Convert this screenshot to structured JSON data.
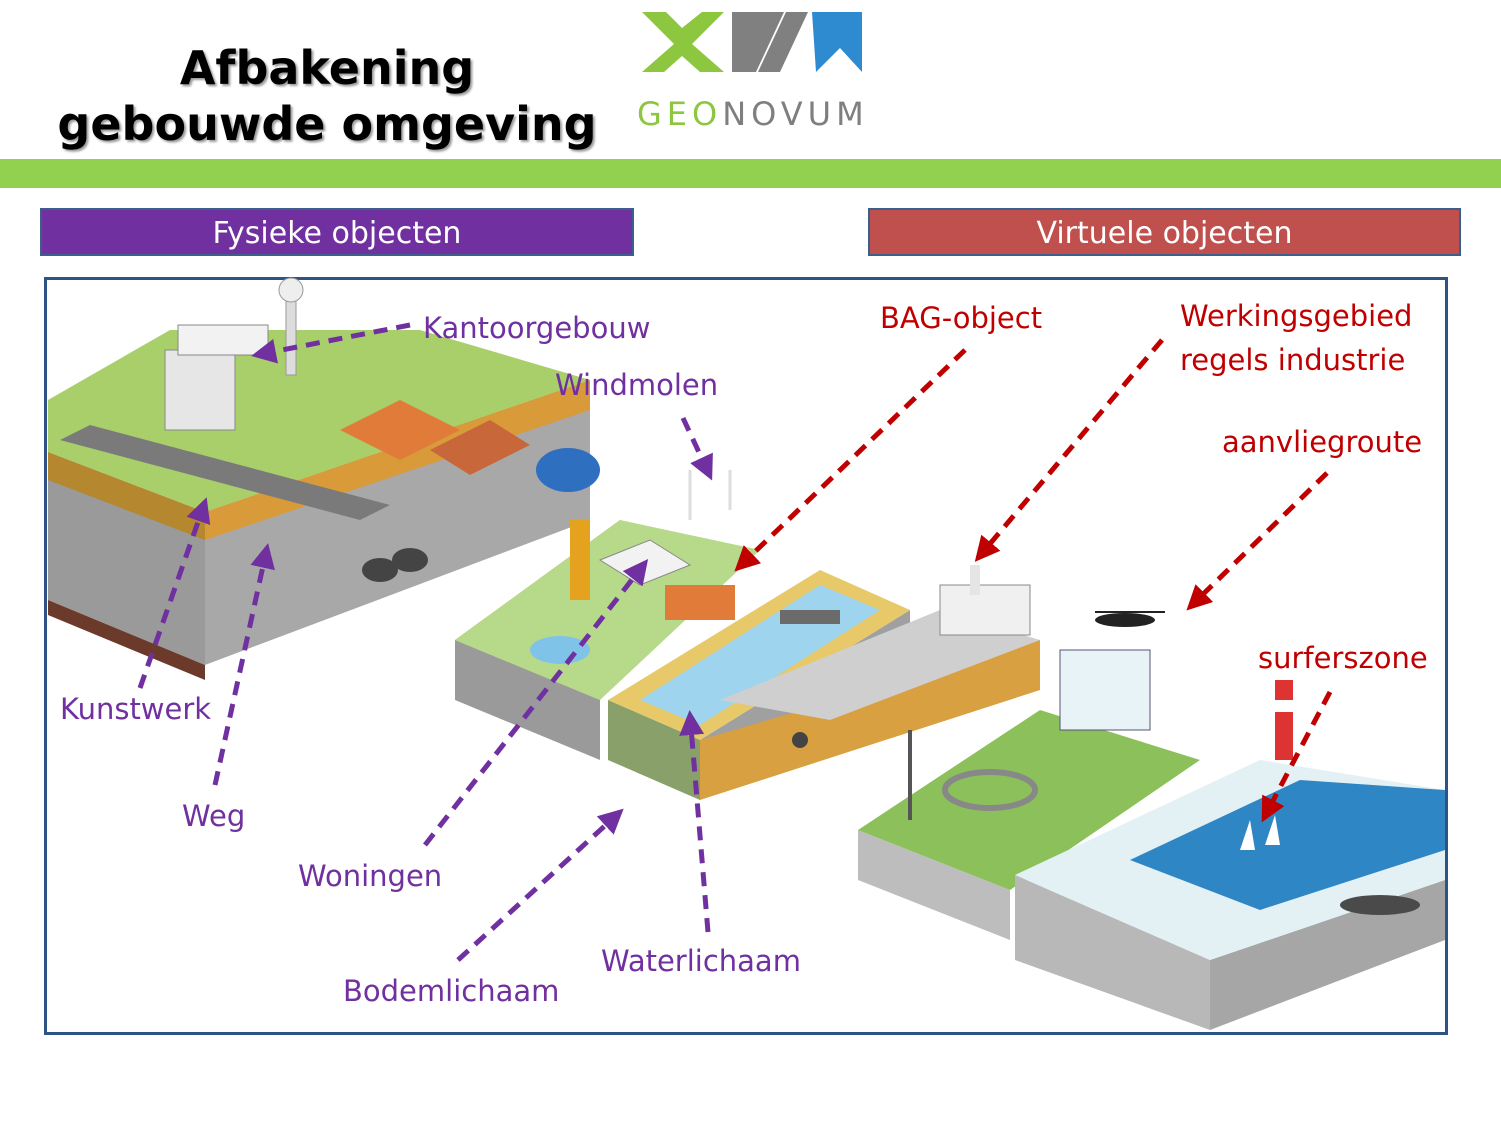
{
  "title": {
    "line1": "Afbakening",
    "line2": "gebouwde omgeving"
  },
  "logo": {
    "word_geo": "GEO",
    "word_novum": "NOVUM",
    "colors": {
      "green": "#8dc63f",
      "grey": "#808080",
      "blue": "#2f8bd0"
    }
  },
  "headers": {
    "physical": "Fysieke objecten",
    "virtual": "Virtuele objecten"
  },
  "labels": {
    "kantoorgebouw": "Kantoorgebouw",
    "windmolen": "Windmolen",
    "kunstwerk": "Kunstwerk",
    "weg": "Weg",
    "woningen": "Woningen",
    "bodemlichaam": "Bodemlichaam",
    "waterlichaam": "Waterlichaam",
    "bag_object": "BAG-object",
    "werkingsgebied_line1": "Werkingsgebied",
    "werkingsgebied_line2": "regels industrie",
    "aanvliegroute": "aanvliegroute",
    "surferszone": "surferszone"
  },
  "colors": {
    "physical": "#7030a0",
    "virtual": "#c00000",
    "accent_bar": "#92d050",
    "frame": "#2e5486"
  }
}
